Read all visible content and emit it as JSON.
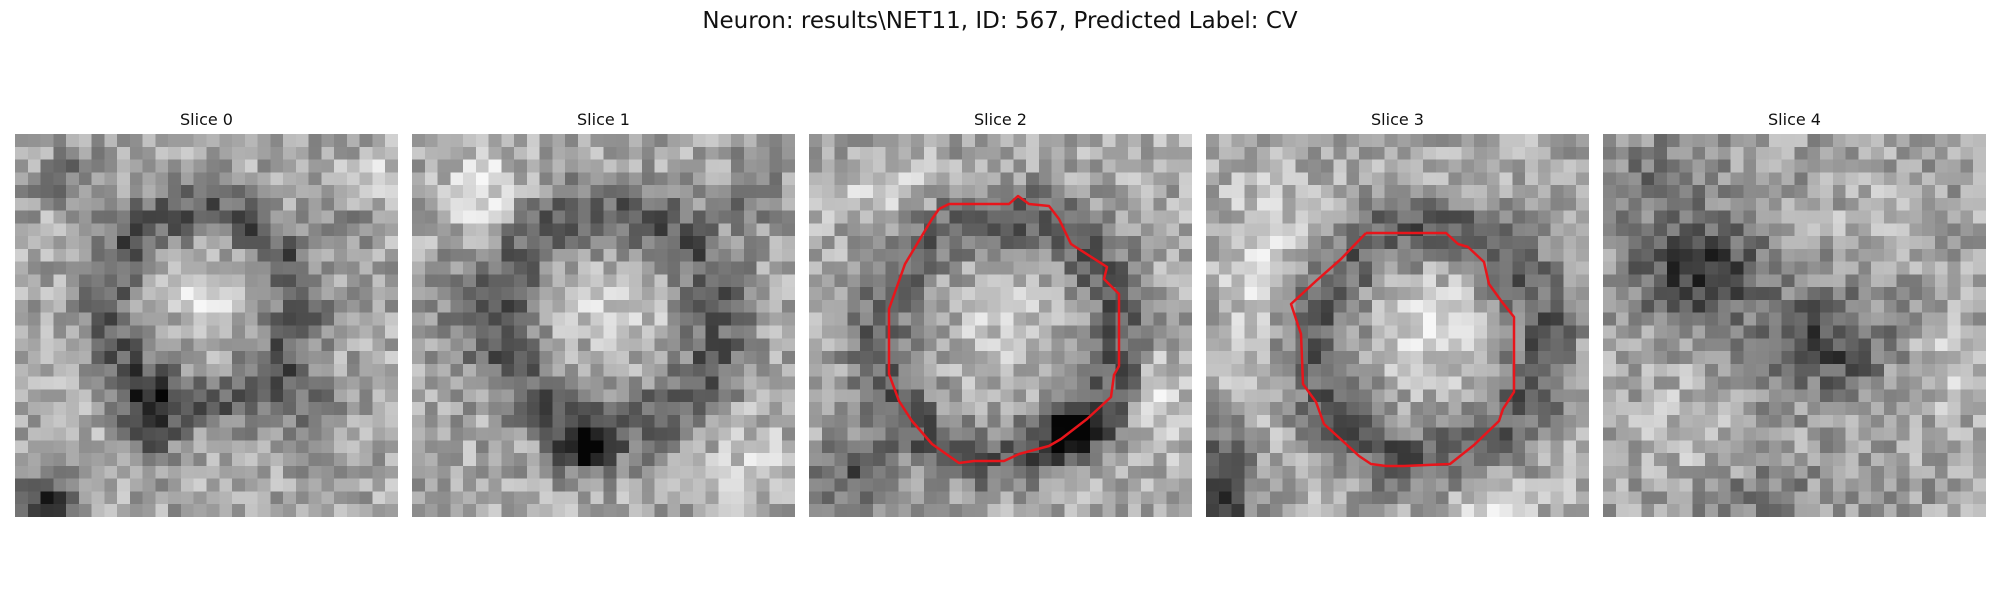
{
  "figure": {
    "title": "Neuron: results\\NET11, ID: 567, Predicted Label: CV"
  },
  "panels": [
    {
      "title": "Slice 0",
      "has_contour": false
    },
    {
      "title": "Slice 1",
      "has_contour": false
    },
    {
      "title": "Slice 2",
      "has_contour": true
    },
    {
      "title": "Slice 3",
      "has_contour": true
    },
    {
      "title": "Slice 4",
      "has_contour": false
    }
  ],
  "colors": {
    "contour": "#e8151b",
    "background": "#ffffff"
  }
}
